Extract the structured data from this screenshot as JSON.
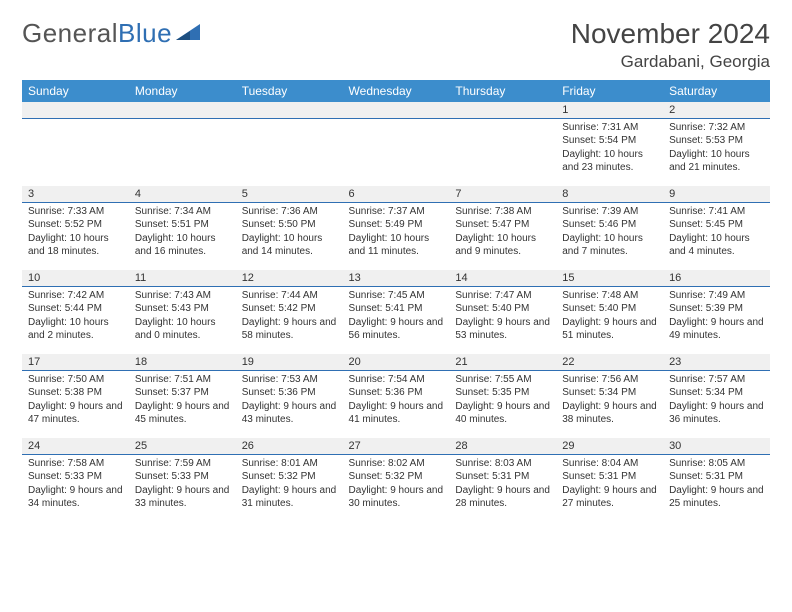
{
  "logo": {
    "part1": "General",
    "part2": "Blue"
  },
  "title": "November 2024",
  "location": "Gardabani, Georgia",
  "day_headers": [
    "Sunday",
    "Monday",
    "Tuesday",
    "Wednesday",
    "Thursday",
    "Friday",
    "Saturday"
  ],
  "colors": {
    "header_bg": "#3c8dcc",
    "divider": "#2f6fb3",
    "daynum_bg": "#f0f0f0",
    "text": "#333333",
    "logo_gray": "#555555",
    "logo_blue": "#2f6fb3"
  },
  "weeks": [
    {
      "nums": [
        "",
        "",
        "",
        "",
        "",
        "1",
        "2"
      ],
      "cells": [
        null,
        null,
        null,
        null,
        null,
        {
          "sunrise": "Sunrise: 7:31 AM",
          "sunset": "Sunset: 5:54 PM",
          "daylight": "Daylight: 10 hours and 23 minutes."
        },
        {
          "sunrise": "Sunrise: 7:32 AM",
          "sunset": "Sunset: 5:53 PM",
          "daylight": "Daylight: 10 hours and 21 minutes."
        }
      ]
    },
    {
      "nums": [
        "3",
        "4",
        "5",
        "6",
        "7",
        "8",
        "9"
      ],
      "cells": [
        {
          "sunrise": "Sunrise: 7:33 AM",
          "sunset": "Sunset: 5:52 PM",
          "daylight": "Daylight: 10 hours and 18 minutes."
        },
        {
          "sunrise": "Sunrise: 7:34 AM",
          "sunset": "Sunset: 5:51 PM",
          "daylight": "Daylight: 10 hours and 16 minutes."
        },
        {
          "sunrise": "Sunrise: 7:36 AM",
          "sunset": "Sunset: 5:50 PM",
          "daylight": "Daylight: 10 hours and 14 minutes."
        },
        {
          "sunrise": "Sunrise: 7:37 AM",
          "sunset": "Sunset: 5:49 PM",
          "daylight": "Daylight: 10 hours and 11 minutes."
        },
        {
          "sunrise": "Sunrise: 7:38 AM",
          "sunset": "Sunset: 5:47 PM",
          "daylight": "Daylight: 10 hours and 9 minutes."
        },
        {
          "sunrise": "Sunrise: 7:39 AM",
          "sunset": "Sunset: 5:46 PM",
          "daylight": "Daylight: 10 hours and 7 minutes."
        },
        {
          "sunrise": "Sunrise: 7:41 AM",
          "sunset": "Sunset: 5:45 PM",
          "daylight": "Daylight: 10 hours and 4 minutes."
        }
      ]
    },
    {
      "nums": [
        "10",
        "11",
        "12",
        "13",
        "14",
        "15",
        "16"
      ],
      "cells": [
        {
          "sunrise": "Sunrise: 7:42 AM",
          "sunset": "Sunset: 5:44 PM",
          "daylight": "Daylight: 10 hours and 2 minutes."
        },
        {
          "sunrise": "Sunrise: 7:43 AM",
          "sunset": "Sunset: 5:43 PM",
          "daylight": "Daylight: 10 hours and 0 minutes."
        },
        {
          "sunrise": "Sunrise: 7:44 AM",
          "sunset": "Sunset: 5:42 PM",
          "daylight": "Daylight: 9 hours and 58 minutes."
        },
        {
          "sunrise": "Sunrise: 7:45 AM",
          "sunset": "Sunset: 5:41 PM",
          "daylight": "Daylight: 9 hours and 56 minutes."
        },
        {
          "sunrise": "Sunrise: 7:47 AM",
          "sunset": "Sunset: 5:40 PM",
          "daylight": "Daylight: 9 hours and 53 minutes."
        },
        {
          "sunrise": "Sunrise: 7:48 AM",
          "sunset": "Sunset: 5:40 PM",
          "daylight": "Daylight: 9 hours and 51 minutes."
        },
        {
          "sunrise": "Sunrise: 7:49 AM",
          "sunset": "Sunset: 5:39 PM",
          "daylight": "Daylight: 9 hours and 49 minutes."
        }
      ]
    },
    {
      "nums": [
        "17",
        "18",
        "19",
        "20",
        "21",
        "22",
        "23"
      ],
      "cells": [
        {
          "sunrise": "Sunrise: 7:50 AM",
          "sunset": "Sunset: 5:38 PM",
          "daylight": "Daylight: 9 hours and 47 minutes."
        },
        {
          "sunrise": "Sunrise: 7:51 AM",
          "sunset": "Sunset: 5:37 PM",
          "daylight": "Daylight: 9 hours and 45 minutes."
        },
        {
          "sunrise": "Sunrise: 7:53 AM",
          "sunset": "Sunset: 5:36 PM",
          "daylight": "Daylight: 9 hours and 43 minutes."
        },
        {
          "sunrise": "Sunrise: 7:54 AM",
          "sunset": "Sunset: 5:36 PM",
          "daylight": "Daylight: 9 hours and 41 minutes."
        },
        {
          "sunrise": "Sunrise: 7:55 AM",
          "sunset": "Sunset: 5:35 PM",
          "daylight": "Daylight: 9 hours and 40 minutes."
        },
        {
          "sunrise": "Sunrise: 7:56 AM",
          "sunset": "Sunset: 5:34 PM",
          "daylight": "Daylight: 9 hours and 38 minutes."
        },
        {
          "sunrise": "Sunrise: 7:57 AM",
          "sunset": "Sunset: 5:34 PM",
          "daylight": "Daylight: 9 hours and 36 minutes."
        }
      ]
    },
    {
      "nums": [
        "24",
        "25",
        "26",
        "27",
        "28",
        "29",
        "30"
      ],
      "cells": [
        {
          "sunrise": "Sunrise: 7:58 AM",
          "sunset": "Sunset: 5:33 PM",
          "daylight": "Daylight: 9 hours and 34 minutes."
        },
        {
          "sunrise": "Sunrise: 7:59 AM",
          "sunset": "Sunset: 5:33 PM",
          "daylight": "Daylight: 9 hours and 33 minutes."
        },
        {
          "sunrise": "Sunrise: 8:01 AM",
          "sunset": "Sunset: 5:32 PM",
          "daylight": "Daylight: 9 hours and 31 minutes."
        },
        {
          "sunrise": "Sunrise: 8:02 AM",
          "sunset": "Sunset: 5:32 PM",
          "daylight": "Daylight: 9 hours and 30 minutes."
        },
        {
          "sunrise": "Sunrise: 8:03 AM",
          "sunset": "Sunset: 5:31 PM",
          "daylight": "Daylight: 9 hours and 28 minutes."
        },
        {
          "sunrise": "Sunrise: 8:04 AM",
          "sunset": "Sunset: 5:31 PM",
          "daylight": "Daylight: 9 hours and 27 minutes."
        },
        {
          "sunrise": "Sunrise: 8:05 AM",
          "sunset": "Sunset: 5:31 PM",
          "daylight": "Daylight: 9 hours and 25 minutes."
        }
      ]
    }
  ]
}
